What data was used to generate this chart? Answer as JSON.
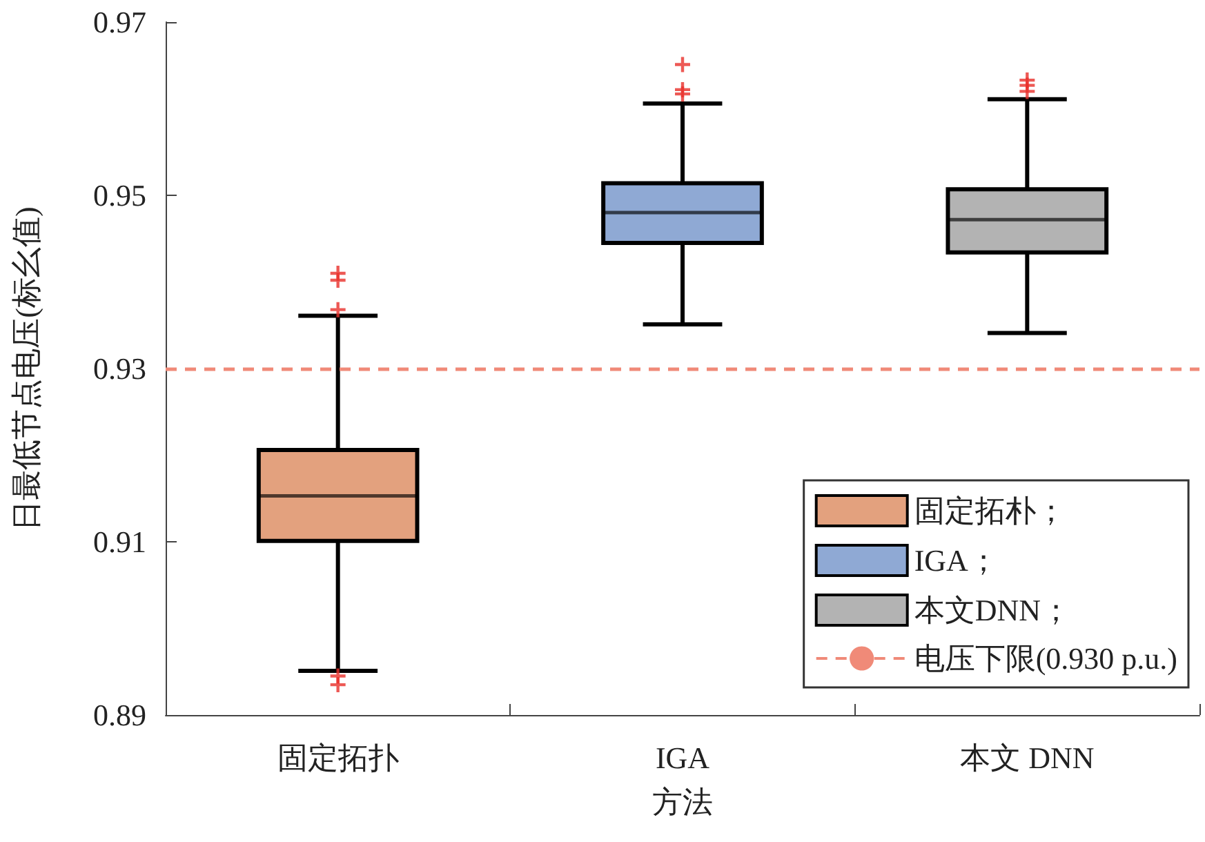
{
  "chart_data": {
    "type": "box",
    "xlabel": "方法",
    "ylabel": "日最低节点电压(标幺值)",
    "categories": [
      "固定拓扑",
      "IGA",
      "本文 DNN"
    ],
    "series": [
      {
        "name": "固定拓朴；",
        "color": "#e3a17e",
        "boxes": [
          {
            "low": 0.8951,
            "q1": 0.9101,
            "median": 0.9153,
            "q3": 0.9206,
            "high": 0.9361,
            "outliers": [
              0.941,
              0.9402,
              0.9368,
              0.8945,
              0.8935
            ]
          },
          null,
          null
        ]
      },
      {
        "name": "IGA；",
        "color": "#8fa9d4",
        "boxes": [
          null,
          {
            "low": 0.9351,
            "q1": 0.9445,
            "median": 0.948,
            "q3": 0.9514,
            "high": 0.9606,
            "outliers": [
              0.9651,
              0.9622,
              0.9617
            ]
          },
          null
        ]
      },
      {
        "name": "本文DNN；",
        "color": "#b3b3b3",
        "boxes": [
          null,
          null,
          {
            "low": 0.9341,
            "q1": 0.9434,
            "median": 0.9472,
            "q3": 0.9507,
            "high": 0.9611,
            "outliers": [
              0.9633,
              0.9627,
              0.962
            ]
          }
        ]
      }
    ],
    "ylim": [
      0.89,
      0.97
    ],
    "yticks": [
      0.89,
      0.91,
      0.93,
      0.95,
      0.97
    ],
    "ref_lines": [
      {
        "axis": "y",
        "value": 0.93,
        "label": "电压下限(0.930 p.u.)",
        "color": "#f08a78",
        "line_style": "dashed"
      }
    ],
    "legend": "bottom right"
  }
}
